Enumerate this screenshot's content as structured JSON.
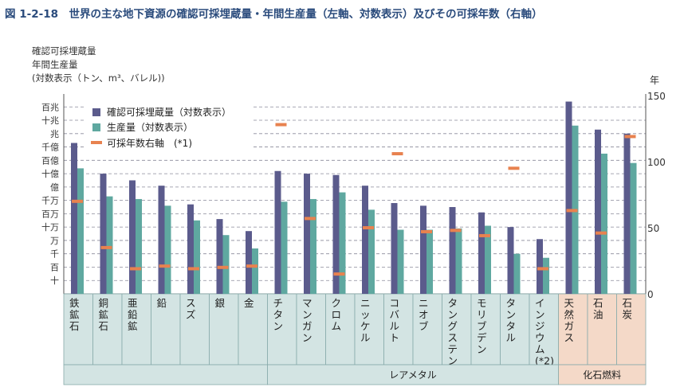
{
  "chart_data": {
    "type": "bar",
    "title": "図 1-2-18　世界の主な地下資源の確認可採埋蔵量・年間生産量（左軸、対数表示）及びその可採年数（右軸）",
    "left_axis_label_lines": [
      "確認可採埋蔵量",
      "年間生産量",
      "(対数表示（トン、m³、バレル))"
    ],
    "right_axis_unit": "年",
    "left_ticks": [
      "百兆",
      "十兆",
      "兆",
      "千億",
      "百億",
      "十億",
      "億",
      "千万",
      "百万",
      "十万",
      "万",
      "千",
      "百",
      "十"
    ],
    "right_ticks": [
      0,
      50,
      100,
      150
    ],
    "ylim_left_log10": [
      0,
      15
    ],
    "ylim_right": [
      0,
      150
    ],
    "legend": {
      "placement": "top-left",
      "items": [
        "確認可採埋蔵量（対数表示）",
        "生産量（対数表示）",
        "可採年数右軸　(*1)"
      ]
    },
    "categories": [
      "鉄鉱石",
      "銅鉱石",
      "亜鉛鉱",
      "鉛",
      "スズ",
      "銀",
      "金",
      "チタン",
      "マンガン",
      "クロム",
      "ニッケル",
      "コバルト",
      "ニオブ",
      "タングステン",
      "モリブデン",
      "タンタル",
      "インジウム(*2)",
      "天然ガス",
      "石油",
      "石炭"
    ],
    "category_display": [
      "鉄\n鉱\n石",
      "銅\n鉱\n石",
      "亜\n鉛\n鉱",
      "鉛",
      "ス\nズ",
      "銀",
      "金",
      "チ\nタ\nン",
      "マ\nン\nガ\nン",
      "ク\nロ\nム",
      "ニ\nッ\nケ\nル",
      "コ\nバ\nル\nト",
      "ニ\nオ\nブ",
      "タ\nン\nグ\nス\nテ\nン",
      "モ\nリ\nブ\nデ\nン",
      "タ\nン\nタ\nル",
      "イ\nン\nジ\nウ\nム\n(*2)",
      "天\n然\nガ\nス",
      "石\n油",
      "石\n炭"
    ],
    "groups": [
      {
        "label": "レアメタル",
        "start": 7,
        "end": 16
      },
      {
        "label": "化石燃料",
        "start": 17,
        "end": 19
      }
    ],
    "series": [
      {
        "name": "確認可採埋蔵量（対数表示）",
        "log10_values": [
          11.3,
          9.0,
          8.5,
          8.1,
          6.7,
          5.6,
          4.7,
          9.2,
          9.0,
          8.9,
          8.1,
          6.8,
          6.6,
          6.5,
          6.1,
          5.0,
          4.1,
          14.4,
          12.3,
          12.0
        ]
      },
      {
        "name": "生産量（対数表示）",
        "log10_values": [
          9.4,
          7.3,
          7.1,
          6.6,
          5.5,
          4.4,
          3.4,
          6.9,
          7.1,
          7.6,
          6.3,
          4.8,
          4.8,
          4.9,
          5.1,
          3.0,
          2.7,
          12.6,
          10.5,
          9.8
        ]
      },
      {
        "name": "可採年数右軸　(*1)",
        "values": [
          70,
          35,
          19,
          21,
          19,
          20,
          21,
          128,
          57,
          15,
          50,
          106,
          47,
          48,
          44,
          95,
          19,
          63,
          46,
          119
        ]
      }
    ],
    "colors": {
      "reserves": "#5b5b8c",
      "production": "#5fa8a0",
      "years": "#e8824f",
      "cat_bg": "#d3e4e3",
      "fossil_bg": "#f4d9c8",
      "title": "#2a4b7c",
      "grid": "#8a8a9a"
    }
  }
}
